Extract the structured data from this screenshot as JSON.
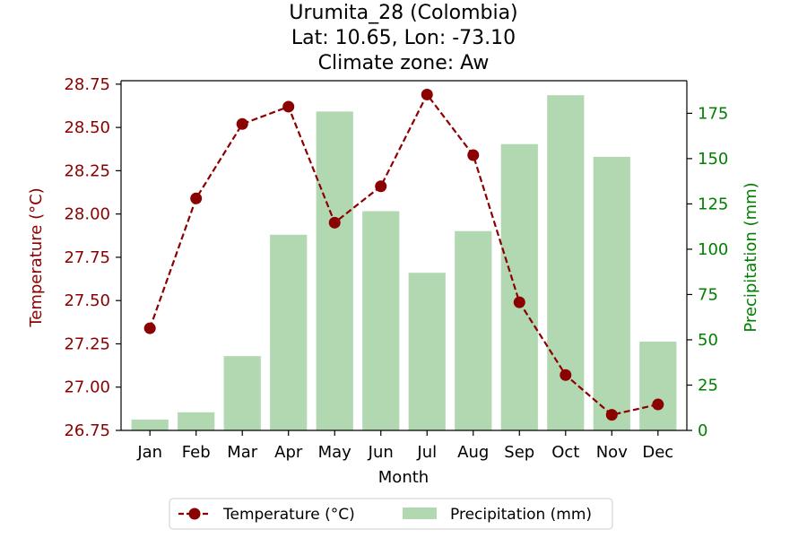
{
  "chart_data": {
    "type": "bar",
    "title_lines": [
      "Urumita_28 (Colombia)",
      "Lat: 10.65, Lon: -73.10",
      "Climate zone: Aw"
    ],
    "xlabel": "Month",
    "ylabel_left": "Temperature (°C)",
    "ylabel_right": "Precipitation (mm)",
    "categories": [
      "Jan",
      "Feb",
      "Mar",
      "Apr",
      "May",
      "Jun",
      "Jul",
      "Aug",
      "Sep",
      "Oct",
      "Nov",
      "Dec"
    ],
    "series": [
      {
        "name": "Temperature (°C)",
        "type": "line",
        "axis": "left",
        "color": "#8b0000",
        "line_style": "dashed",
        "marker": "circle",
        "values": [
          27.34,
          28.09,
          28.52,
          28.62,
          27.95,
          28.16,
          28.69,
          28.34,
          27.49,
          27.07,
          26.84,
          26.9
        ]
      },
      {
        "name": "Precipitation (mm)",
        "type": "bar",
        "axis": "right",
        "color": "#b2d8b2",
        "values": [
          6,
          10,
          41,
          108,
          176,
          121,
          87,
          110,
          158,
          185,
          151,
          49
        ]
      }
    ],
    "ylim_left": [
      26.75,
      28.77
    ],
    "yticks_left": [
      "26.75",
      "27.00",
      "27.25",
      "27.50",
      "27.75",
      "28.00",
      "28.25",
      "28.50",
      "28.75"
    ],
    "ylim_right": [
      0,
      193
    ],
    "yticks_right": [
      "0",
      "25",
      "50",
      "75",
      "100",
      "125",
      "150",
      "175"
    ],
    "left_axis_color": "#8b0000",
    "right_axis_color": "#008000",
    "grid": false,
    "legend_placement": "bottom-center"
  }
}
